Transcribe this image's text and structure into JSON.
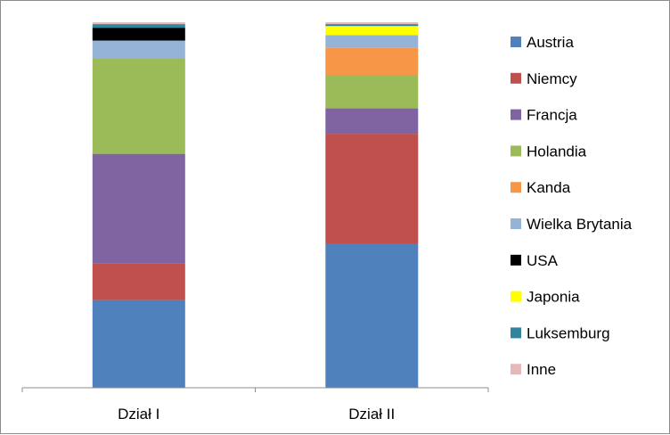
{
  "chart_data": {
    "type": "bar",
    "stacked": true,
    "percent_stacked": true,
    "categories": [
      "Dział I",
      "Dział II"
    ],
    "series": [
      {
        "name": "Austria",
        "color": "#4F81BD",
        "values": [
          24.0,
          39.5
        ]
      },
      {
        "name": "Niemcy",
        "color": "#C0504D",
        "values": [
          10.0,
          30.0
        ]
      },
      {
        "name": "Francja",
        "color": "#8064A2",
        "values": [
          30.0,
          7.0
        ]
      },
      {
        "name": "Holandia",
        "color": "#9BBB59",
        "values": [
          26.0,
          9.0
        ]
      },
      {
        "name": "Kanda",
        "color": "#F79646",
        "values": [
          0.0,
          7.5
        ]
      },
      {
        "name": "Wielka Brytania",
        "color": "#95B3D7",
        "values": [
          5.0,
          3.5
        ]
      },
      {
        "name": "USA",
        "color": "#000000",
        "values": [
          3.5,
          0.0
        ]
      },
      {
        "name": "Japonia",
        "color": "#FFFF00",
        "values": [
          0.0,
          2.5
        ]
      },
      {
        "name": "Luksemburg",
        "color": "#31849B",
        "values": [
          1.0,
          0.5
        ]
      },
      {
        "name": "Inne",
        "color": "#E6B9B8",
        "values": [
          0.5,
          0.5
        ]
      }
    ],
    "legend_position": "right",
    "grid": false,
    "ylim": [
      0,
      100
    ]
  }
}
